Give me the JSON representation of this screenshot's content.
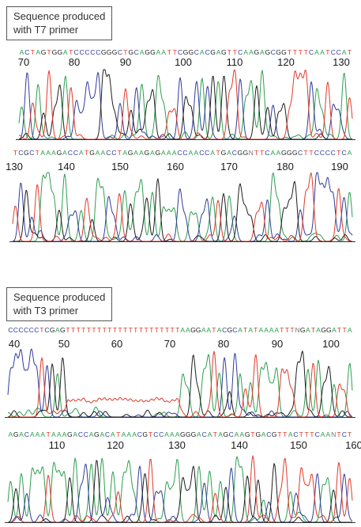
{
  "panels": [
    {
      "label": [
        "Sequence produced",
        "with T7 primer"
      ],
      "rows": [
        {
          "sequence": "ACTAGTGGATCCCCCGGGCTGCAGGAATTCGGCACGAGTTCAAGAGCGGTTTTCAATCCAT",
          "positions": [
            70,
            80,
            90,
            100,
            110,
            120,
            130
          ],
          "pattern": "normal"
        },
        {
          "sequence": "TCGCTAAAGACCATGAACCTAGAAGAGAAACCAACCATGACGGNTTCAAGGGCTTCCCCTCA",
          "positions": [
            130,
            140,
            150,
            160,
            170,
            180,
            190
          ],
          "pattern": "normal"
        }
      ]
    },
    {
      "label": [
        "Sequence produced",
        "with T3 primer"
      ],
      "rows": [
        {
          "sequence": "CCCCCCTCGAGTTTTTTTTTTTTTTTTTTTTTTAAGGAATACGCATATAAAATTTNGATAGGATTA",
          "positions": [
            40,
            50,
            60,
            70,
            80,
            90,
            100
          ],
          "pattern": "polyT"
        },
        {
          "sequence": "AGACAAATAAAGACCAGACATAAACGTCCAAAGGGACATAGCAAGTGACGTTACTTTCAANTCT",
          "positions": [
            110,
            120,
            130,
            140,
            150,
            160
          ],
          "pattern": "normal"
        }
      ]
    }
  ],
  "base_colors": {
    "A": "#2e9e4f",
    "C": "#2f3c9a",
    "G": "#1e1e1e",
    "T": "#e03a2a",
    "N": "#777777"
  }
}
